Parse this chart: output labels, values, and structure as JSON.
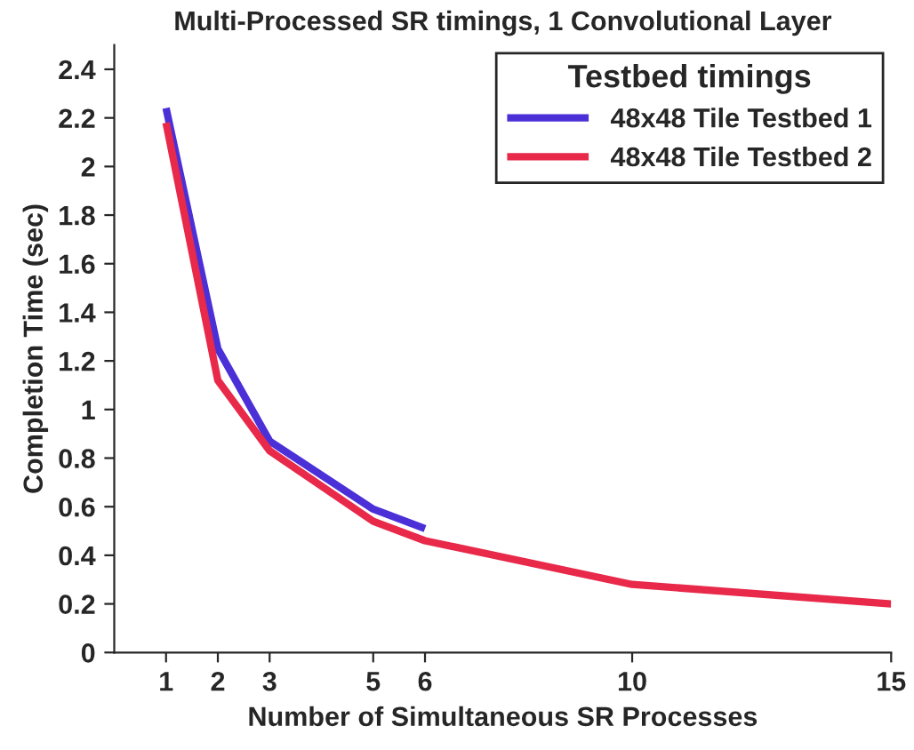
{
  "chart_data": {
    "type": "line",
    "title": "Multi-Processed SR timings, 1 Convolutional Layer",
    "xlabel": "Number of Simultaneous SR Processes",
    "ylabel": "Completion Time (sec)",
    "legend_title": "Testbed timings",
    "series": [
      {
        "name": "48x48 Tile Testbed 1",
        "color": "#4b30d8",
        "x": [
          1,
          2,
          3,
          5,
          6
        ],
        "values": [
          2.24,
          1.25,
          0.87,
          0.59,
          0.51
        ]
      },
      {
        "name": "48x48 Tile Testbed 2",
        "color": "#e8294a",
        "x": [
          1,
          2,
          3,
          5,
          6,
          10,
          15
        ],
        "values": [
          2.18,
          1.12,
          0.83,
          0.54,
          0.46,
          0.28,
          0.2
        ]
      }
    ],
    "xlim": [
      0,
      15
    ],
    "xticks": [
      1,
      2,
      3,
      5,
      6,
      10,
      15
    ],
    "ylim": [
      0,
      2.5
    ],
    "yticks": [
      0,
      0.2,
      0.4,
      0.6,
      0.8,
      1,
      1.2,
      1.4,
      1.6,
      1.8,
      2,
      2.2,
      2.4
    ],
    "legend": "top right",
    "grid": false,
    "line_style": "solid"
  }
}
